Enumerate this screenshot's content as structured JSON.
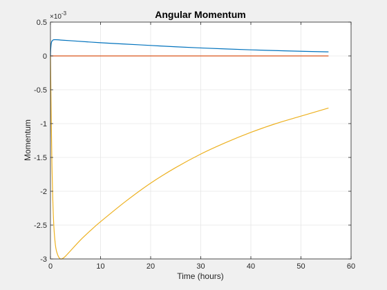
{
  "chart_data": {
    "type": "line",
    "title": "Angular Momentum",
    "xlabel": "Time (hours)",
    "ylabel": "Momentum",
    "exponent_label": "×10",
    "exponent_power": "-3",
    "xlim": [
      0,
      60
    ],
    "ylim": [
      -3,
      0.5
    ],
    "xticks": [
      0,
      10,
      20,
      30,
      40,
      50,
      60
    ],
    "xtick_labels": [
      "0",
      "10",
      "20",
      "30",
      "40",
      "50",
      "60"
    ],
    "yticks": [
      0.5,
      0,
      -0.5,
      -1,
      -1.5,
      -2,
      -2.5,
      -3
    ],
    "ytick_labels": [
      "0.5",
      "0",
      "-0.5",
      "-1",
      "-1.5",
      "-2",
      "-2.5",
      "-3"
    ],
    "grid": true,
    "colors": [
      "#0072BD",
      "#D95319",
      "#EDB120"
    ],
    "series": [
      {
        "color": "#0072BD",
        "x": [
          0,
          0.05,
          0.2,
          0.5,
          1,
          2,
          5,
          10,
          15,
          20,
          25,
          30,
          35,
          40,
          45,
          50,
          55.5
        ],
        "y": [
          0.0,
          0.1,
          0.2,
          0.235,
          0.24,
          0.235,
          0.22,
          0.195,
          0.175,
          0.155,
          0.135,
          0.118,
          0.103,
          0.09,
          0.079,
          0.069,
          0.06
        ]
      },
      {
        "color": "#D95319",
        "x": [
          0,
          55.5
        ],
        "y": [
          0.0,
          0.0
        ]
      },
      {
        "color": "#EDB120",
        "x": [
          0,
          0.1,
          0.3,
          0.6,
          1.0,
          1.5,
          2.0,
          2.5,
          3,
          4,
          6,
          8,
          10,
          15,
          20,
          25,
          30,
          35,
          40,
          45,
          50,
          55.5
        ],
        "y": [
          0.0,
          -0.6,
          -1.6,
          -2.4,
          -2.8,
          -2.95,
          -3.0,
          -2.99,
          -2.96,
          -2.88,
          -2.72,
          -2.58,
          -2.45,
          -2.15,
          -1.88,
          -1.65,
          -1.45,
          -1.28,
          -1.13,
          -1.0,
          -0.89,
          -0.77
        ]
      }
    ]
  }
}
